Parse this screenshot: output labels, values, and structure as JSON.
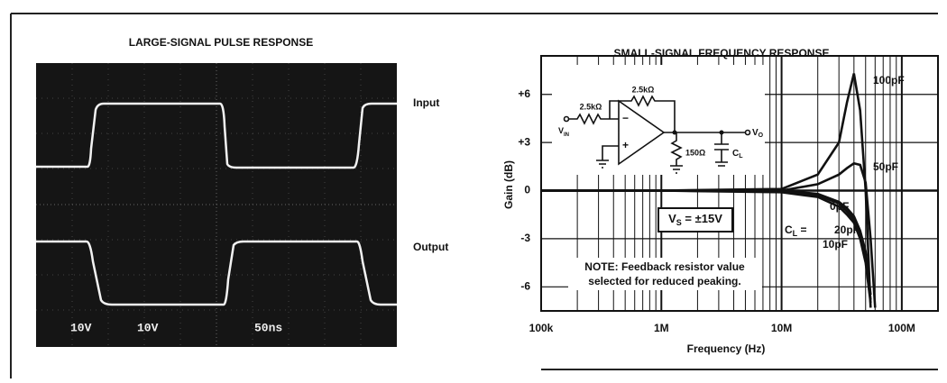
{
  "chart_data": [
    {
      "type": "scope",
      "title": "LARGE-SIGNAL PULSE RESPONSE",
      "traces": [
        "Input",
        "Output"
      ],
      "scale_labels": [
        "10V",
        "10V",
        "50ns"
      ]
    },
    {
      "type": "line",
      "title": "SMALL-SIGNAL FREQUENCY RESPONSE",
      "x_label": "Frequency (Hz)",
      "y_label": "Gain (dB)",
      "log_x": true,
      "grid": true,
      "minor_grid": true,
      "color": "#111111",
      "xlim": [
        100000,
        200000000
      ],
      "xticks": [
        {
          "value": 100000,
          "label": "100k"
        },
        {
          "value": 1000000,
          "label": "1M"
        },
        {
          "value": 10000000,
          "label": "10M"
        },
        {
          "value": 100000000,
          "label": "100M"
        }
      ],
      "ylim": [
        -7.5,
        8.4
      ],
      "yticks": [
        {
          "value": 6,
          "label": "+6"
        },
        {
          "value": 3,
          "label": "+3"
        },
        0,
        -3,
        -6
      ],
      "x": [
        100000,
        1000000,
        10000000,
        20000000,
        30000000,
        35000000,
        40000000,
        45000000,
        50000000,
        55000000,
        60000000
      ],
      "series": [
        {
          "name": "100pF",
          "values": [
            0,
            0,
            0.1,
            1,
            3,
            5.5,
            7.3,
            5,
            0,
            -7.3,
            null
          ]
        },
        {
          "name": "50pF",
          "values": [
            0,
            0,
            0,
            0.4,
            1,
            1.4,
            1.7,
            1.6,
            0.5,
            -3,
            -7.3
          ]
        },
        {
          "name": "0pF",
          "values": [
            0,
            0,
            -0.1,
            -0.4,
            -1,
            -1.5,
            -2,
            -3,
            -4.5,
            -7,
            null
          ]
        },
        {
          "name": "20pF",
          "values": [
            0,
            0,
            0,
            -0.2,
            -0.7,
            -1.1,
            -1.6,
            -2.5,
            -3.8,
            -6.5,
            null
          ]
        },
        {
          "name": "10pF",
          "values": [
            0,
            0,
            -0.05,
            -0.3,
            -0.8,
            -1.3,
            -1.8,
            -2.8,
            -4.2,
            -6.8,
            null
          ]
        }
      ],
      "cl_prefix": {
        "main": "C",
        "sub": "L",
        "rest": " ="
      },
      "supply_note": {
        "main": "V",
        "sub": "S",
        "rest": " = ±15V"
      },
      "note": [
        "NOTE: Feedback resistor value",
        "selected for reduced peaking."
      ],
      "circuit": {
        "r_in": "2.5kΩ",
        "r_f": "2.5kΩ",
        "r_load": "150Ω",
        "vin": {
          "main": "V",
          "sub": "IN"
        },
        "vout": {
          "main": "V",
          "sub": "O"
        },
        "cl": {
          "main": "C",
          "sub": "L"
        }
      }
    }
  ]
}
